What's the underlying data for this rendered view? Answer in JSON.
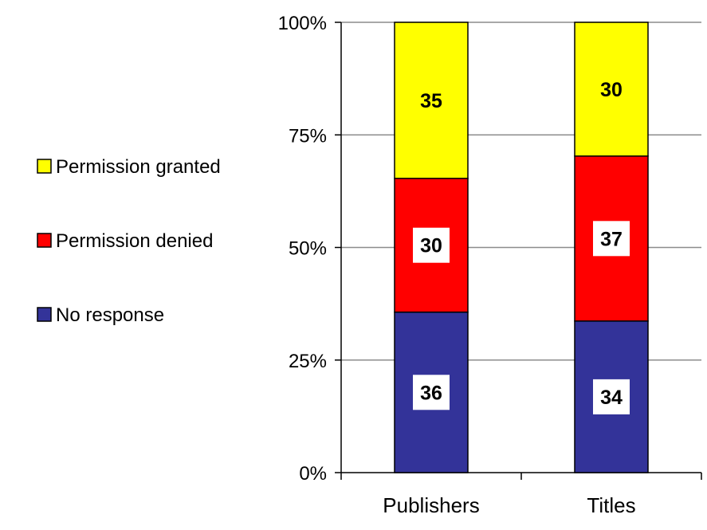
{
  "chart_data": {
    "type": "bar",
    "stacked": true,
    "percent": true,
    "categories": [
      "Publishers",
      "Titles"
    ],
    "series": [
      {
        "name": "No response",
        "values": [
          36,
          34
        ],
        "color": "#333399"
      },
      {
        "name": "Permission denied",
        "values": [
          30,
          37
        ],
        "color": "#ff0000"
      },
      {
        "name": "Permission granted",
        "values": [
          35,
          30
        ],
        "color": "#ffff00"
      }
    ],
    "y_ticks": [
      "0%",
      "25%",
      "50%",
      "75%",
      "100%"
    ],
    "ylim": [
      0,
      100
    ],
    "grid": true,
    "legend_position": "left",
    "legend_order": [
      "Permission granted",
      "Permission denied",
      "No response"
    ]
  }
}
